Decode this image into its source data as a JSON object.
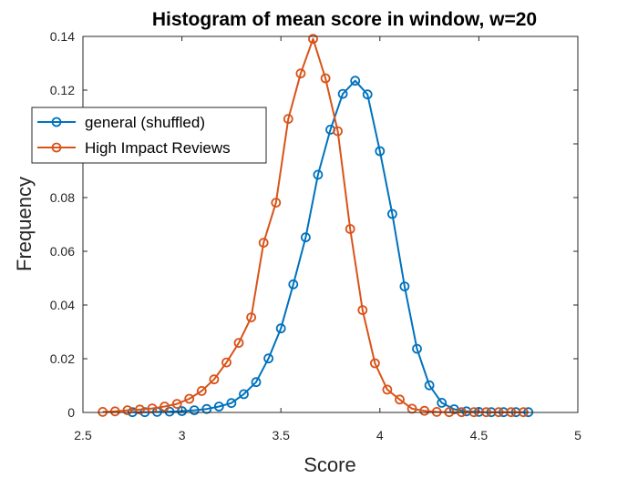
{
  "chart_data": {
    "type": "line",
    "title": "Histogram of mean score in window, w=20",
    "xlabel": "Score",
    "ylabel": "Frequency",
    "xlim": [
      2.5,
      5
    ],
    "ylim": [
      0,
      0.14
    ],
    "xticks": [
      2.5,
      3,
      3.5,
      4,
      4.5,
      5
    ],
    "xtick_labels": [
      "2.5",
      "3",
      "3.5",
      "4",
      "4.5",
      "5"
    ],
    "yticks": [
      0,
      0.02,
      0.04,
      0.06,
      0.08,
      0.1,
      0.12,
      0.14
    ],
    "ytick_labels": [
      "0",
      "0.02",
      "0.04",
      "0.06",
      "0.08",
      "0.1",
      "0.12",
      "0.14"
    ],
    "grid": false,
    "legend_position": "upper-left",
    "series": [
      {
        "name": "general (shuffled)",
        "color": "#0072BD",
        "marker": "circle",
        "x": [
          2.75,
          2.8125,
          2.875,
          2.9375,
          3.0,
          3.0625,
          3.125,
          3.1875,
          3.25,
          3.3125,
          3.375,
          3.4375,
          3.5,
          3.5625,
          3.625,
          3.6875,
          3.75,
          3.8125,
          3.875,
          3.9375,
          4.0,
          4.0625,
          4.125,
          4.1875,
          4.25,
          4.3125,
          4.375,
          4.4375,
          4.5,
          4.5625,
          4.625,
          4.6875,
          4.75
        ],
        "y": [
          0.0001,
          0.0001,
          0.0002,
          0.0003,
          0.0005,
          0.0008,
          0.0013,
          0.0022,
          0.0035,
          0.0068,
          0.0113,
          0.0201,
          0.0313,
          0.0477,
          0.0652,
          0.0885,
          0.1053,
          0.1186,
          0.1235,
          0.1184,
          0.0973,
          0.0739,
          0.0469,
          0.0237,
          0.0101,
          0.0036,
          0.0012,
          0.0004,
          0.0002,
          0.0001,
          0.0001,
          0.0001,
          0.0001
        ]
      },
      {
        "name": "High Impact Reviews",
        "color": "#D95319",
        "marker": "circle",
        "x": [
          2.6,
          2.6625,
          2.725,
          2.7875,
          2.85,
          2.9125,
          2.975,
          3.0375,
          3.1,
          3.1625,
          3.225,
          3.2875,
          3.35,
          3.4125,
          3.475,
          3.5375,
          3.6,
          3.6625,
          3.725,
          3.7875,
          3.85,
          3.9125,
          3.975,
          4.0375,
          4.1,
          4.1625,
          4.225,
          4.2875,
          4.35,
          4.4125,
          4.475,
          4.5375,
          4.6,
          4.6625,
          4.725
        ],
        "y": [
          0.0002,
          0.0004,
          0.0008,
          0.0011,
          0.0015,
          0.0022,
          0.0032,
          0.0051,
          0.008,
          0.0123,
          0.0186,
          0.0259,
          0.0354,
          0.0632,
          0.0781,
          0.1093,
          0.1262,
          0.1391,
          0.1244,
          0.1047,
          0.0683,
          0.0381,
          0.0183,
          0.0085,
          0.0048,
          0.0014,
          0.0006,
          0.0002,
          0.0001,
          0.0001,
          0.0001,
          0.0001,
          0.0001,
          0.0001,
          0.0001
        ]
      }
    ]
  }
}
